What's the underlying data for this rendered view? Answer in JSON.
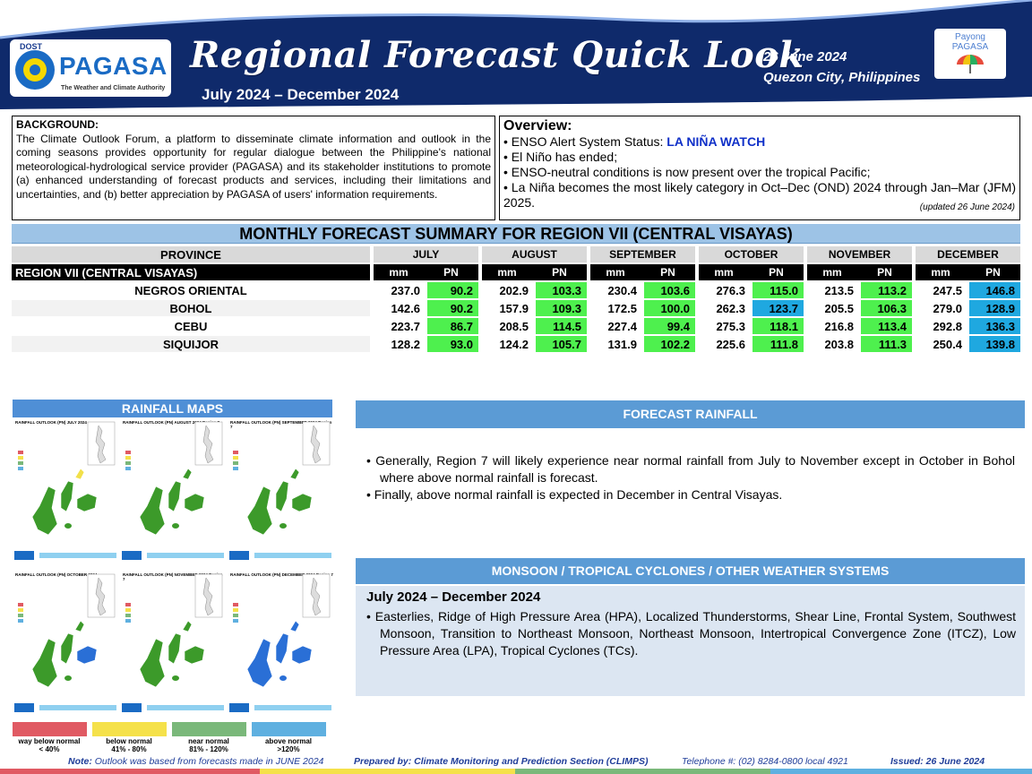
{
  "header": {
    "agency_prefix": "DOST",
    "agency": "PAGASA",
    "tagline": "The Weather and Climate Authority",
    "title": "Regional Forecast Quick Look",
    "period": "July 2024 – December 2024",
    "date": "26 June 2024",
    "location": "Quezon City, Philippines",
    "payong_line1": "Payong",
    "payong_line2": "PAGASA"
  },
  "background": {
    "heading": "BACKGROUND:",
    "text": "The Climate Outlook Forum, a platform to disseminate climate information and outlook in the coming seasons provides opportunity for regular dialogue between the Philippine's national meteorological-hydrological service provider (PAGASA) and its stakeholder institutions to promote (a) enhanced understanding of forecast products and services, including their limitations and uncertainties, and (b) better appreciation by PAGASA of users' information requirements."
  },
  "overview": {
    "heading": "Overview:",
    "items": [
      "• ENSO Alert System Status: ",
      "• El Niño has ended;",
      "• ENSO-neutral conditions is now present over the tropical Pacific;",
      "• La Niña becomes the most likely category in Oct–Dec (OND) 2024 through Jan–Mar (JFM) 2025."
    ],
    "status": "LA NIÑA WATCH",
    "updated": "(updated 26 June 2024)"
  },
  "table": {
    "title": "MONTHLY FORECAST SUMMARY FOR REGION VII (CENTRAL VISAYAS)",
    "province_header": "PROVINCE",
    "region": "REGION VII (CENTRAL VISAYAS)",
    "months": [
      "JULY",
      "AUGUST",
      "SEPTEMBER",
      "OCTOBER",
      "NOVEMBER",
      "DECEMBER"
    ],
    "sub_mm": "mm",
    "sub_pn": "PN",
    "rows": [
      {
        "province": "NEGROS ORIENTAL",
        "values": [
          "237.0",
          "90.2",
          "202.9",
          "103.3",
          "230.4",
          "103.6",
          "276.3",
          "115.0",
          "213.5",
          "113.2",
          "247.5",
          "146.8"
        ],
        "pn_class": [
          "g",
          "g",
          "g",
          "g",
          "g",
          "b"
        ]
      },
      {
        "province": "BOHOL",
        "values": [
          "142.6",
          "90.2",
          "157.9",
          "109.3",
          "172.5",
          "100.0",
          "262.3",
          "123.7",
          "205.5",
          "106.3",
          "279.0",
          "128.9"
        ],
        "pn_class": [
          "g",
          "g",
          "g",
          "b",
          "g",
          "b"
        ]
      },
      {
        "province": "CEBU",
        "values": [
          "223.7",
          "86.7",
          "208.5",
          "114.5",
          "227.4",
          "99.4",
          "275.3",
          "118.1",
          "216.8",
          "113.4",
          "292.8",
          "136.3"
        ],
        "pn_class": [
          "g",
          "g",
          "g",
          "g",
          "g",
          "b"
        ]
      },
      {
        "province": "SIQUIJOR",
        "values": [
          "128.2",
          "93.0",
          "124.2",
          "105.7",
          "131.9",
          "102.2",
          "225.6",
          "111.8",
          "203.8",
          "111.3",
          "250.4",
          "139.8"
        ],
        "pn_class": [
          "g",
          "g",
          "g",
          "g",
          "g",
          "b"
        ]
      }
    ]
  },
  "maps": {
    "heading": "RAINFALL MAPS",
    "titles": [
      "RAINFALL OUTLOOK (PN) JULY 2024",
      "RAINFALL OUTLOOK (PN) AUGUST 2024 Region 7",
      "RAINFALL OUTLOOK (PN) SEPTEMBER 2024 Region 7",
      "RAINFALL OUTLOOK (PN) OCTOBER 2024",
      "RAINFALL OUTLOOK (PN) NOVEMBER 2024 Region 7",
      "RAINFALL OUTLOOK (PN) DECEMBER 2024 Region 7"
    ],
    "legend": [
      {
        "label": "way below normal",
        "range": "< 40%",
        "color": "#e05a63"
      },
      {
        "label": "below normal",
        "range": "41% - 80%",
        "color": "#f5e14a"
      },
      {
        "label": "near normal",
        "range": "81% - 120%",
        "color": "#7ab87a"
      },
      {
        "label": "above normal",
        "range": ">120%",
        "color": "#5fb0e0"
      }
    ]
  },
  "forecast": {
    "heading": "FORECAST RAINFALL",
    "bullets": [
      "•  Generally, Region 7 will likely experience near normal rainfall from July to November except in October in Bohol where above normal rainfall is forecast.",
      "•  Finally, above normal rainfall is expected in December in Central Visayas."
    ]
  },
  "monsoon": {
    "heading": "MONSOON  / TROPICAL CYCLONES / OTHER WEATHER SYSTEMS",
    "period": "July 2024 – December 2024",
    "text": "•  Easterlies, Ridge of High Pressure Area (HPA), Localized Thunderstorms, Shear Line, Frontal System, Southwest Monsoon, Transition to Northeast Monsoon, Northeast Monsoon, Intertropical Convergence Zone (ITCZ), Low Pressure Area (LPA), Tropical Cyclones (TCs)."
  },
  "footer": {
    "note_label": "Note:",
    "note": "Outlook was based from forecasts made in JUNE 2024",
    "prepared": "Prepared by: Climate Monitoring and Prediction Section (CLIMPS)",
    "telephone": "Telephone #: (02) 8284-0800 local 4921",
    "issued": "Issued: 26 June 2024"
  },
  "colors": {
    "header_navy": "#0f2a6b",
    "above_normal": "#1fa8e0",
    "near_normal": "#4ef04e",
    "section_blue": "#5b9bd5"
  }
}
